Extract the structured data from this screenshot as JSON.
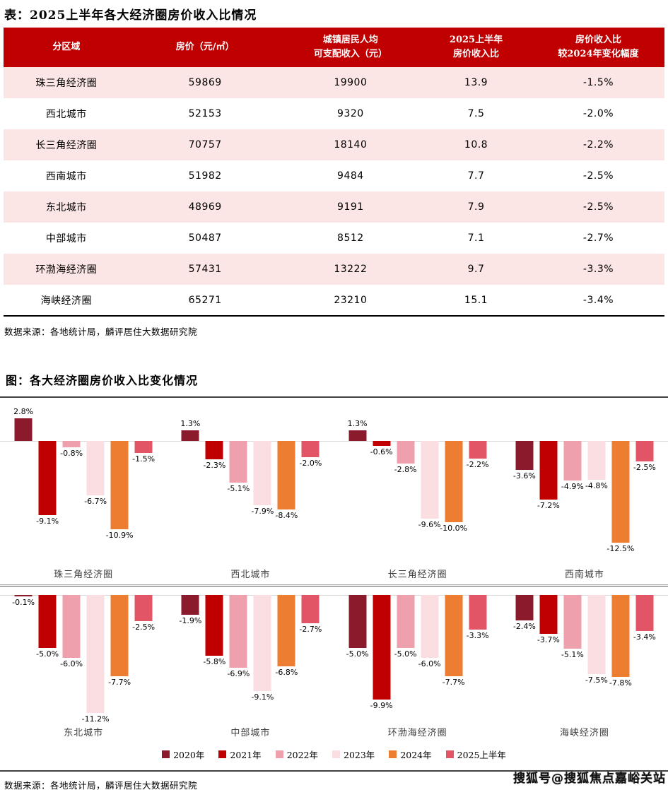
{
  "colors": {
    "header_red": "#C00000",
    "row_pink": "#FCE6E5",
    "rule_dark": "#404040",
    "zero_line": "#D9D9D9"
  },
  "table_section": {
    "title": "表：2025上半年各大经济圈房价收入比情况",
    "columns": [
      "分区域",
      "房价（元/㎡）",
      "城镇居民人均\n可支配收入（元）",
      "2025上半年\n房价收入比",
      "房价收入比\n较2024年变化幅度"
    ],
    "rows": [
      [
        "珠三角经济圈",
        "59869",
        "19900",
        "13.9",
        "-1.5%"
      ],
      [
        "西北城市",
        "52153",
        "9320",
        "7.5",
        "-2.0%"
      ],
      [
        "长三角经济圈",
        "70757",
        "18140",
        "10.8",
        "-2.2%"
      ],
      [
        "西南城市",
        "51982",
        "9484",
        "7.7",
        "-2.5%"
      ],
      [
        "东北城市",
        "48969",
        "9191",
        "7.9",
        "-2.5%"
      ],
      [
        "中部城市",
        "50487",
        "8512",
        "7.1",
        "-2.7%"
      ],
      [
        "环渤海经济圈",
        "57431",
        "13222",
        "9.7",
        "-3.3%"
      ],
      [
        "海峡经济圈",
        "65271",
        "23210",
        "15.1",
        "-3.4%"
      ]
    ],
    "source": "数据来源：各地统计局，麟评居住大数据研究院"
  },
  "chart_section": {
    "title": "图：各大经济圈房价收入比变化情况",
    "source": "数据来源：各地统计局，麟评居住大数据研究院"
  },
  "chart_data": {
    "type": "bar",
    "title": "各大经济圈房价收入比变化情况",
    "unit": "%",
    "legend_position": "bottom",
    "grid": false,
    "rows_layout": [
      4,
      4
    ],
    "categories": [
      "珠三角经济圈",
      "西北城市",
      "长三角经济圈",
      "西南城市",
      "东北城市",
      "中部城市",
      "环渤海经济圈",
      "海峡经济圈"
    ],
    "series": [
      {
        "name": "2020年",
        "color": "#8B1B2C",
        "values": [
          2.8,
          1.3,
          1.3,
          -3.6,
          -0.1,
          -1.9,
          -5.0,
          -2.4
        ]
      },
      {
        "name": "2021年",
        "color": "#C00000",
        "values": [
          -9.1,
          -2.3,
          -0.6,
          -7.2,
          -5.0,
          -5.8,
          -9.9,
          -3.7
        ]
      },
      {
        "name": "2022年",
        "color": "#EEA0AC",
        "values": [
          -0.8,
          -5.1,
          -2.8,
          -4.9,
          -6.0,
          -6.9,
          -5.0,
          -5.1
        ]
      },
      {
        "name": "2023年",
        "color": "#FADEE2",
        "values": [
          -6.7,
          -7.9,
          -9.6,
          -4.8,
          -11.2,
          -9.1,
          -6.0,
          -7.5
        ]
      },
      {
        "name": "2024年",
        "color": "#ED7D31",
        "values": [
          -10.9,
          -8.4,
          -10.0,
          -12.5,
          -7.7,
          -6.8,
          -7.7,
          -7.8
        ]
      },
      {
        "name": "2025上半年",
        "color": "#E25566",
        "values": [
          -1.5,
          -2.0,
          -2.2,
          -2.5,
          -2.5,
          -2.7,
          -3.3,
          -3.4
        ]
      }
    ]
  },
  "watermark": "搜狐号@搜狐焦点嘉峪关站"
}
